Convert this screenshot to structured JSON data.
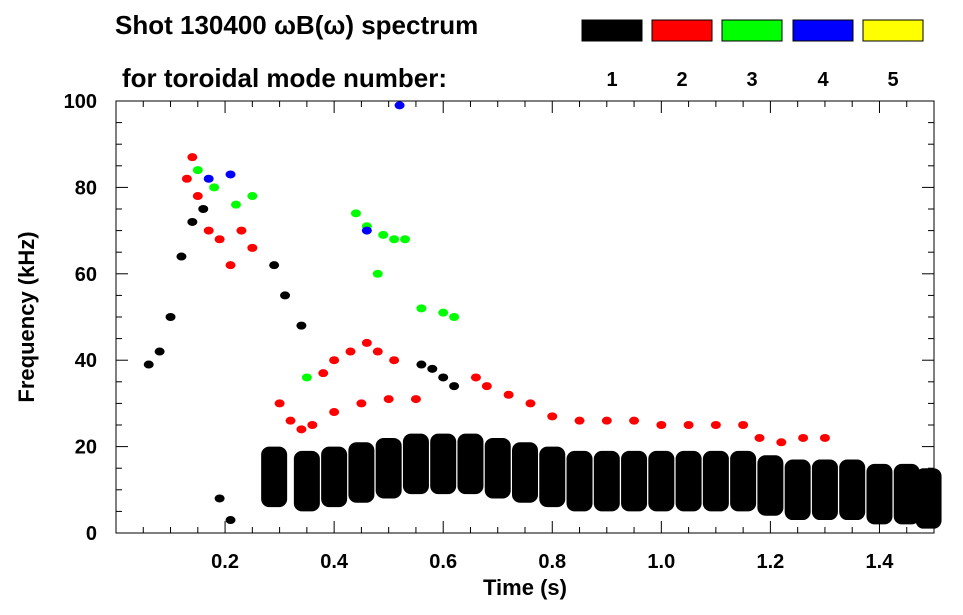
{
  "chart_data": {
    "type": "heatmap",
    "title_line1": "Shot 130400 ωB(ω) spectrum",
    "title_line2": "for toroidal mode number:",
    "xlabel": "Time (s)",
    "ylabel": "Frequency (kHz)",
    "xlim": [
      0.0,
      1.5
    ],
    "ylim": [
      0,
      100
    ],
    "xticks": [
      {
        "value": 0.2,
        "label": "0.2"
      },
      {
        "value": 0.4,
        "label": "0.4"
      },
      {
        "value": 0.6,
        "label": "0.6"
      },
      {
        "value": 0.8,
        "label": "0.8"
      },
      {
        "value": 1.0,
        "label": "1.0"
      },
      {
        "value": 1.2,
        "label": "1.2"
      },
      {
        "value": 1.4,
        "label": "1.4"
      }
    ],
    "yticks": [
      {
        "value": 0,
        "label": "0"
      },
      {
        "value": 20,
        "label": "20"
      },
      {
        "value": 40,
        "label": "40"
      },
      {
        "value": 60,
        "label": "60"
      },
      {
        "value": 80,
        "label": "80"
      },
      {
        "value": 100,
        "label": "100"
      }
    ],
    "legend": [
      {
        "label": "1",
        "color": "#000000"
      },
      {
        "label": "2",
        "color": "#ff0000"
      },
      {
        "label": "3",
        "color": "#00ff00"
      },
      {
        "label": "4",
        "color": "#0000ff"
      },
      {
        "label": "5",
        "color": "#ffff00"
      }
    ],
    "legend_position": "top-right",
    "series": [
      {
        "mode": 1,
        "points": [
          {
            "x": 0.06,
            "y": 39
          },
          {
            "x": 0.08,
            "y": 42
          },
          {
            "x": 0.1,
            "y": 50
          },
          {
            "x": 0.12,
            "y": 64
          },
          {
            "x": 0.14,
            "y": 72
          },
          {
            "x": 0.16,
            "y": 75
          },
          {
            "x": 0.19,
            "y": 8
          },
          {
            "x": 0.21,
            "y": 3
          },
          {
            "x": 0.29,
            "y": 62
          },
          {
            "x": 0.31,
            "y": 55
          },
          {
            "x": 0.34,
            "y": 48
          },
          {
            "x": 0.56,
            "y": 39
          },
          {
            "x": 0.58,
            "y": 38
          },
          {
            "x": 0.6,
            "y": 36
          },
          {
            "x": 0.62,
            "y": 34
          }
        ]
      },
      {
        "mode": 1,
        "band": true,
        "points": [
          {
            "x": 0.29,
            "y": 14
          },
          {
            "x": 0.35,
            "y": 13
          },
          {
            "x": 0.4,
            "y": 14
          },
          {
            "x": 0.45,
            "y": 15
          },
          {
            "x": 0.5,
            "y": 16
          },
          {
            "x": 0.55,
            "y": 17
          },
          {
            "x": 0.6,
            "y": 17
          },
          {
            "x": 0.65,
            "y": 17
          },
          {
            "x": 0.7,
            "y": 16
          },
          {
            "x": 0.75,
            "y": 15
          },
          {
            "x": 0.8,
            "y": 14
          },
          {
            "x": 0.85,
            "y": 13
          },
          {
            "x": 0.9,
            "y": 13
          },
          {
            "x": 0.95,
            "y": 13
          },
          {
            "x": 1.0,
            "y": 13
          },
          {
            "x": 1.05,
            "y": 13
          },
          {
            "x": 1.1,
            "y": 13
          },
          {
            "x": 1.15,
            "y": 13
          },
          {
            "x": 1.2,
            "y": 12
          },
          {
            "x": 1.25,
            "y": 11
          },
          {
            "x": 1.3,
            "y": 11
          },
          {
            "x": 1.35,
            "y": 11
          },
          {
            "x": 1.4,
            "y": 10
          },
          {
            "x": 1.45,
            "y": 10
          },
          {
            "x": 1.49,
            "y": 9
          }
        ]
      },
      {
        "mode": 2,
        "points": [
          {
            "x": 0.13,
            "y": 82
          },
          {
            "x": 0.14,
            "y": 87
          },
          {
            "x": 0.15,
            "y": 78
          },
          {
            "x": 0.17,
            "y": 70
          },
          {
            "x": 0.19,
            "y": 68
          },
          {
            "x": 0.21,
            "y": 62
          },
          {
            "x": 0.23,
            "y": 70
          },
          {
            "x": 0.25,
            "y": 66
          },
          {
            "x": 0.3,
            "y": 30
          },
          {
            "x": 0.32,
            "y": 26
          },
          {
            "x": 0.34,
            "y": 24
          },
          {
            "x": 0.36,
            "y": 25
          },
          {
            "x": 0.4,
            "y": 28
          },
          {
            "x": 0.45,
            "y": 30
          },
          {
            "x": 0.5,
            "y": 31
          },
          {
            "x": 0.55,
            "y": 31
          },
          {
            "x": 0.38,
            "y": 37
          },
          {
            "x": 0.4,
            "y": 40
          },
          {
            "x": 0.43,
            "y": 42
          },
          {
            "x": 0.46,
            "y": 44
          },
          {
            "x": 0.48,
            "y": 42
          },
          {
            "x": 0.51,
            "y": 40
          },
          {
            "x": 0.66,
            "y": 36
          },
          {
            "x": 0.68,
            "y": 34
          },
          {
            "x": 0.72,
            "y": 32
          },
          {
            "x": 0.76,
            "y": 30
          },
          {
            "x": 0.8,
            "y": 27
          },
          {
            "x": 0.85,
            "y": 26
          },
          {
            "x": 0.9,
            "y": 26
          },
          {
            "x": 0.95,
            "y": 26
          },
          {
            "x": 1.0,
            "y": 25
          },
          {
            "x": 1.05,
            "y": 25
          },
          {
            "x": 1.1,
            "y": 25
          },
          {
            "x": 1.15,
            "y": 25
          },
          {
            "x": 1.18,
            "y": 22
          },
          {
            "x": 1.22,
            "y": 21
          },
          {
            "x": 1.26,
            "y": 22
          },
          {
            "x": 1.3,
            "y": 22
          }
        ]
      },
      {
        "mode": 3,
        "points": [
          {
            "x": 0.15,
            "y": 84
          },
          {
            "x": 0.18,
            "y": 80
          },
          {
            "x": 0.22,
            "y": 76
          },
          {
            "x": 0.25,
            "y": 78
          },
          {
            "x": 0.44,
            "y": 74
          },
          {
            "x": 0.46,
            "y": 71
          },
          {
            "x": 0.49,
            "y": 69
          },
          {
            "x": 0.51,
            "y": 68
          },
          {
            "x": 0.53,
            "y": 68
          },
          {
            "x": 0.48,
            "y": 60
          },
          {
            "x": 0.56,
            "y": 52
          },
          {
            "x": 0.6,
            "y": 51
          },
          {
            "x": 0.62,
            "y": 50
          },
          {
            "x": 0.35,
            "y": 36
          }
        ]
      },
      {
        "mode": 4,
        "points": [
          {
            "x": 0.17,
            "y": 82
          },
          {
            "x": 0.21,
            "y": 83
          },
          {
            "x": 0.52,
            "y": 99
          },
          {
            "x": 0.46,
            "y": 70
          }
        ]
      },
      {
        "mode": 5,
        "points": []
      }
    ]
  }
}
